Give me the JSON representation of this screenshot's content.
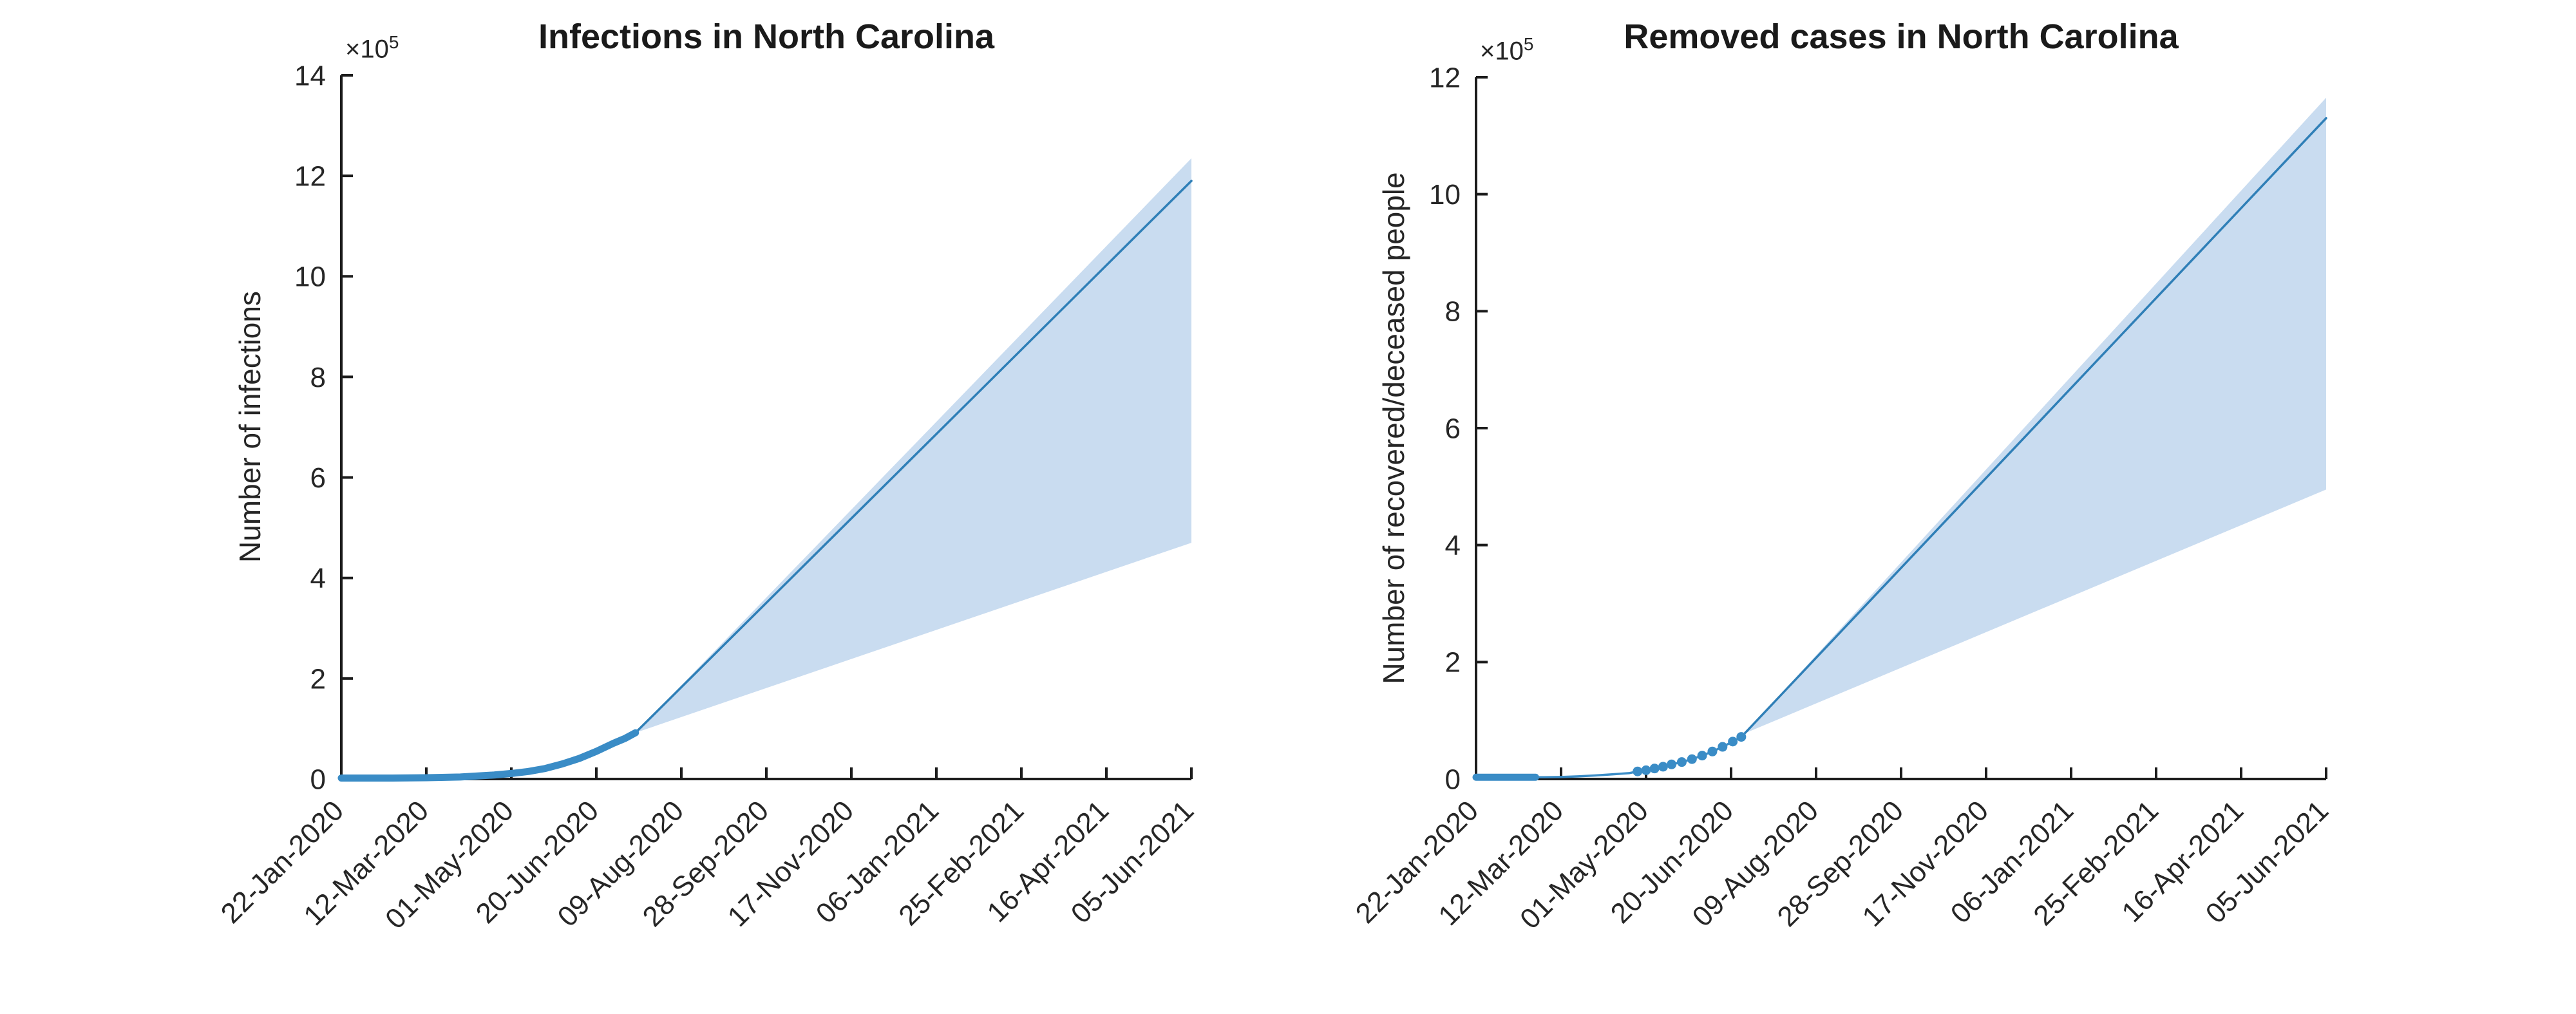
{
  "figure": {
    "background": "#ffffff",
    "axis_color": "#1c1c1c",
    "text_color": "#262626"
  },
  "chart_data": [
    {
      "type": "line",
      "title": "Infections in North Carolina",
      "ylabel": "Number of infections",
      "y_exponent_label": {
        "base": "×10",
        "exp": "5"
      },
      "xlabel": "",
      "xlim": [
        0,
        500
      ],
      "ylim": [
        0,
        14
      ],
      "y_ticks": [
        0,
        2,
        4,
        6,
        8,
        10,
        12,
        14
      ],
      "x_tick_positions": [
        0,
        50,
        100,
        150,
        200,
        250,
        300,
        350,
        400,
        450,
        500
      ],
      "x_tick_labels": [
        "22-Jan-2020",
        "12-Mar-2020",
        "01-May-2020",
        "20-Jun-2020",
        "09-Aug-2020",
        "28-Sep-2020",
        "17-Nov-2020",
        "06-Jan-2021",
        "25-Feb-2021",
        "16-Apr-2021",
        "05-Jun-2021"
      ],
      "grid": false,
      "legend": "none",
      "units": "x10^5 people, x axis in days since 22-Jan-2020",
      "series": [
        {
          "name": "confidence-band",
          "kind": "band",
          "fill": "#c9dcf0",
          "x": [
            173,
            500
          ],
          "upper": [
            0.92,
            12.35
          ],
          "lower": [
            0.92,
            4.7
          ]
        },
        {
          "name": "forecast-median",
          "kind": "line",
          "color": "#2f7fb7",
          "width": 3.5,
          "x": [
            173,
            500
          ],
          "y": [
            0.92,
            11.9
          ]
        },
        {
          "name": "observed-infections",
          "kind": "line",
          "color": "#3a8cc6",
          "width": 11,
          "x": [
            0,
            30,
            50,
            70,
            90,
            100,
            110,
            120,
            130,
            140,
            150,
            160,
            167,
            173
          ],
          "y": [
            0.02,
            0.02,
            0.025,
            0.04,
            0.08,
            0.11,
            0.15,
            0.21,
            0.3,
            0.41,
            0.55,
            0.71,
            0.81,
            0.92
          ]
        }
      ]
    },
    {
      "type": "line",
      "title": "Removed cases in North Carolina",
      "ylabel": "Number of recovered/deceased people",
      "y_exponent_label": {
        "base": "×10",
        "exp": "5"
      },
      "xlabel": "",
      "xlim": [
        0,
        500
      ],
      "ylim": [
        0,
        12
      ],
      "y_ticks": [
        0,
        2,
        4,
        6,
        8,
        10,
        12
      ],
      "x_tick_positions": [
        0,
        50,
        100,
        150,
        200,
        250,
        300,
        350,
        400,
        450,
        500
      ],
      "x_tick_labels": [
        "22-Jan-2020",
        "12-Mar-2020",
        "01-May-2020",
        "20-Jun-2020",
        "09-Aug-2020",
        "28-Sep-2020",
        "17-Nov-2020",
        "06-Jan-2021",
        "25-Feb-2021",
        "16-Apr-2021",
        "05-Jun-2021"
      ],
      "grid": false,
      "legend": "none",
      "units": "x10^5 people, x axis in days since 22-Jan-2020",
      "series": [
        {
          "name": "confidence-band",
          "kind": "band",
          "fill": "#c9dcf0",
          "x": [
            158,
            500
          ],
          "upper": [
            0.78,
            11.65
          ],
          "lower": [
            0.78,
            4.95
          ]
        },
        {
          "name": "forecast-median",
          "kind": "line",
          "color": "#2f7fb7",
          "width": 3.5,
          "x": [
            158,
            500
          ],
          "y": [
            0.78,
            11.3
          ]
        },
        {
          "name": "observed-removed-line",
          "kind": "line",
          "color": "#3a8cc6",
          "width": 3.5,
          "x": [
            30,
            40,
            50,
            60,
            70,
            80,
            90,
            95,
            100,
            105,
            110,
            115,
            121,
            127,
            133,
            139,
            145,
            151,
            156,
            158
          ],
          "y": [
            0.03,
            0.03,
            0.035,
            0.045,
            0.06,
            0.08,
            0.1,
            0.13,
            0.15,
            0.18,
            0.21,
            0.25,
            0.29,
            0.34,
            0.4,
            0.47,
            0.55,
            0.64,
            0.72,
            0.78
          ]
        },
        {
          "name": "observed-removed-early",
          "kind": "line",
          "color": "#3a8cc6",
          "width": 11,
          "x": [
            0,
            35
          ],
          "y": [
            0.03,
            0.03
          ]
        },
        {
          "name": "observed-removed-dots",
          "kind": "scatter",
          "color": "#3a8cc6",
          "radius": 7.5,
          "x": [
            95,
            100,
            105,
            110,
            115,
            121,
            127,
            133,
            139,
            145,
            151,
            156
          ],
          "y": [
            0.13,
            0.15,
            0.18,
            0.21,
            0.25,
            0.29,
            0.34,
            0.4,
            0.47,
            0.55,
            0.64,
            0.72
          ]
        }
      ]
    }
  ]
}
